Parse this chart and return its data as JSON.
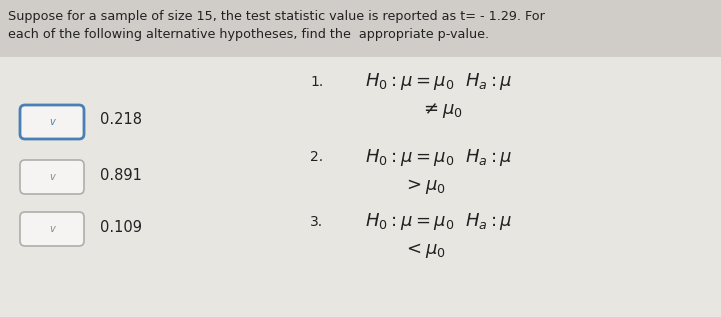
{
  "title_line1": "Suppose for a sample of size 15, the test statistic value is reported as t= - 1.29. For",
  "title_line2": "each of the following alternative hypotheses, find the  appropriate p-value.",
  "bg_color": "#e8e6e1",
  "title_bg_color": "#d0cdc8",
  "box_fill": "#f5f4f2",
  "box_border_selected": "#4a7fb5",
  "box_border_normal": "#b0aead",
  "text_color": "#222222",
  "answers": [
    "0.218",
    "0.891",
    "0.109"
  ],
  "checkmark": "∨",
  "hyp_fontsize": 13,
  "num_fontsize": 11
}
